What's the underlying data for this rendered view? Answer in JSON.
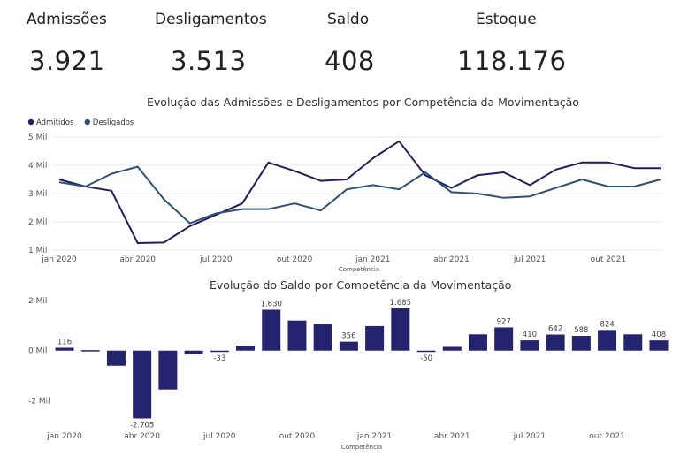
{
  "kpis": {
    "admissoes": {
      "label": "Admissões",
      "value": "3.921"
    },
    "desligamentos": {
      "label": "Desligamentos",
      "value": "3.513"
    },
    "saldo": {
      "label": "Saldo",
      "value": "408"
    },
    "estoque": {
      "label": "Estoque",
      "value": "118.176"
    }
  },
  "colors": {
    "admitidos": "#1f1f5c",
    "desligados": "#2e4f77",
    "saldo_bar": "#23236e",
    "axis_text": "#555555",
    "grid": "#e8e8e8"
  },
  "chart_data": [
    {
      "type": "line",
      "title": "Evolução das Admissões e Desligamentos por Competência da Movimentação",
      "xlabel": "Competência",
      "ylabel": "",
      "ylim": [
        1000,
        5000
      ],
      "yticks": [
        1000,
        2000,
        3000,
        4000,
        5000
      ],
      "ytick_labels": [
        "1 Mil",
        "2 Mil",
        "3 Mil",
        "4 Mil",
        "5 Mil"
      ],
      "x_tick_index": [
        0,
        3,
        6,
        9,
        12,
        15,
        18,
        21
      ],
      "x_tick_labels": [
        "jan 2020",
        "abr 2020",
        "jul 2020",
        "out 2020",
        "jan 2021",
        "abr 2021",
        "jul 2021",
        "out 2021"
      ],
      "legend_position": "top-left",
      "categories": [
        "jan 2020",
        "fev 2020",
        "mar 2020",
        "abr 2020",
        "mai 2020",
        "jun 2020",
        "jul 2020",
        "ago 2020",
        "set 2020",
        "out 2020",
        "nov 2020",
        "dez 2020",
        "jan 2021",
        "fev 2021",
        "mar 2021",
        "abr 2021",
        "mai 2021",
        "jun 2021",
        "jul 2021",
        "ago 2021",
        "set 2021",
        "out 2021",
        "nov 2021",
        "dez 2021"
      ],
      "series": [
        {
          "name": "Admitidos",
          "color": "#1f1f5c",
          "values": [
            3500,
            3250,
            3100,
            1250,
            1270,
            1850,
            2250,
            2650,
            4100,
            3800,
            3450,
            3500,
            4250,
            4850,
            3650,
            3200,
            3650,
            3750,
            3300,
            3850,
            4100,
            4100,
            3900,
            3900
          ]
        },
        {
          "name": "Desligados",
          "color": "#2e4f77",
          "values": [
            3400,
            3250,
            3700,
            3950,
            2800,
            1950,
            2300,
            2450,
            2450,
            2650,
            2400,
            3150,
            3300,
            3150,
            3750,
            3050,
            3000,
            2850,
            2900,
            3200,
            3500,
            3250,
            3250,
            3500
          ]
        }
      ]
    },
    {
      "type": "bar",
      "title": "Evolução do Saldo por Competência da Movimentação",
      "xlabel": "Competência",
      "ylabel": "",
      "ylim": [
        -2900,
        2000
      ],
      "yticks": [
        -2000,
        0,
        2000
      ],
      "ytick_labels": [
        "-2 Mil",
        "0 Mil",
        "2 Mil"
      ],
      "x_tick_index": [
        0,
        3,
        6,
        9,
        12,
        15,
        18,
        21
      ],
      "x_tick_labels": [
        "jan 2020",
        "abr 2020",
        "jul 2020",
        "out 2020",
        "jan 2021",
        "abr 2021",
        "jul 2021",
        "out 2021"
      ],
      "categories": [
        "jan 2020",
        "fev 2020",
        "mar 2020",
        "abr 2020",
        "mai 2020",
        "jun 2020",
        "jul 2020",
        "ago 2020",
        "set 2020",
        "out 2020",
        "nov 2020",
        "dez 2020",
        "jan 2021",
        "fev 2021",
        "mar 2021",
        "abr 2021",
        "mai 2021",
        "jun 2021",
        "jul 2021",
        "ago 2021",
        "set 2021",
        "out 2021",
        "nov 2021",
        "dez 2021"
      ],
      "values": [
        116,
        20,
        -600,
        -2705,
        -1550,
        -150,
        -33,
        200,
        1630,
        1200,
        1070,
        356,
        980,
        1685,
        -50,
        150,
        650,
        927,
        410,
        642,
        588,
        824,
        650,
        408
      ],
      "data_labels": {
        "0": "116",
        "3": "-2.705",
        "6": "-33",
        "8": "1.630",
        "11": "356",
        "13": "1.685",
        "14": "-50",
        "17": "927",
        "18": "410",
        "19": "642",
        "20": "588",
        "21": "824",
        "23": "408"
      }
    }
  ]
}
